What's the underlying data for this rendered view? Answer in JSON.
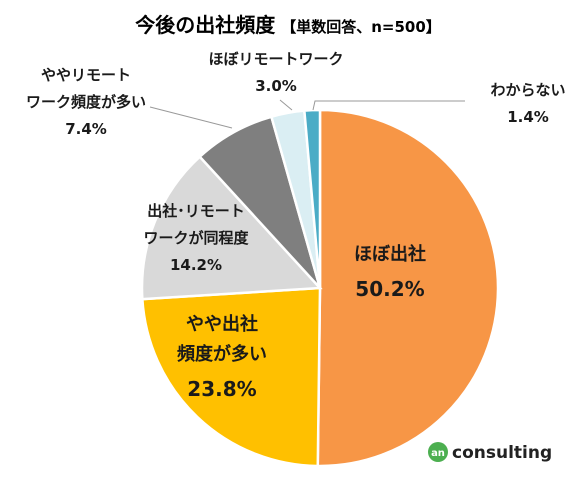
{
  "chart_data": {
    "type": "pie",
    "title": "今後の出社頻度",
    "subtitle": "【単数回答、n=500】",
    "start_angle_deg": 0,
    "direction": "clockwise",
    "unit": "%",
    "slices": [
      {
        "label": [
          "ほぼ出社"
        ],
        "value": 50.2,
        "value_text": "50.2%",
        "color": "#F79646",
        "label_color": "#1A1A1A"
      },
      {
        "label": [
          "やや出社",
          "頻度が多い"
        ],
        "value": 23.8,
        "value_text": "23.8%",
        "color": "#FFC000",
        "label_color": "#1A1A1A"
      },
      {
        "label": [
          "出社･リモート",
          "ワークが同程度"
        ],
        "value": 14.2,
        "value_text": "14.2%",
        "color": "#D9D9D9",
        "label_color": "#1A1A1A"
      },
      {
        "label": [
          "ややリモート",
          "ワーク頻度が多い"
        ],
        "value": 7.4,
        "value_text": "7.4%",
        "color": "#7F7F7F",
        "label_color": "#1A1A1A"
      },
      {
        "label": [
          "ほぼリモートワーク"
        ],
        "value": 3.0,
        "value_text": "3.0%",
        "color": "#DAEEF3",
        "label_color": "#1A1A1A"
      },
      {
        "label": [
          "わからない"
        ],
        "value": 1.4,
        "value_text": "1.4%",
        "color": "#4BACC6",
        "label_color": "#1A1A1A"
      }
    ]
  },
  "logo": {
    "mark_text": "an",
    "word": "consulting",
    "mark_color": "#4CAF50"
  }
}
